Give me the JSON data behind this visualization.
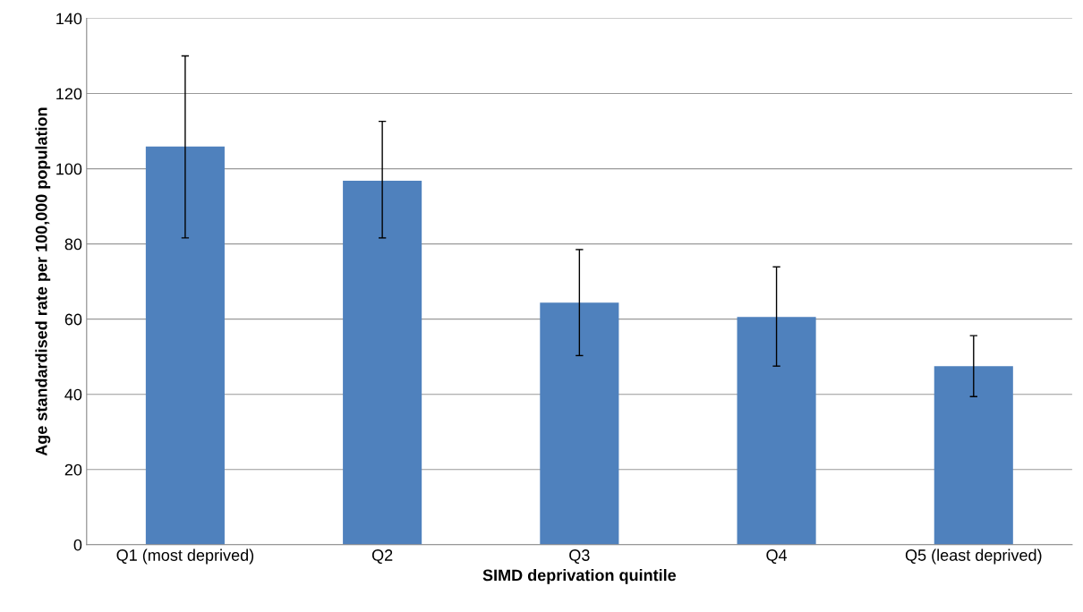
{
  "chart_data": {
    "type": "bar",
    "xlabel": "SIMD deprivation quintile",
    "ylabel": "Age standardised rate per 100,000 population",
    "categories": [
      "Q1 (most deprived)",
      "Q2",
      "Q3",
      "Q4",
      "Q5 (least deprived)"
    ],
    "values": [
      105.9,
      96.8,
      64.4,
      60.6,
      47.5
    ],
    "errors": [
      [
        81.6,
        130
      ],
      [
        81.6,
        112.6
      ],
      [
        50.3,
        78.5
      ],
      [
        47.5,
        73.9
      ],
      [
        39.4,
        55.6
      ]
    ],
    "color": "#4f81bd",
    "ylim": [
      0,
      140
    ],
    "yticks": [
      0,
      20,
      40,
      60,
      80,
      100,
      120,
      140
    ],
    "grid": "y",
    "legend": false
  }
}
